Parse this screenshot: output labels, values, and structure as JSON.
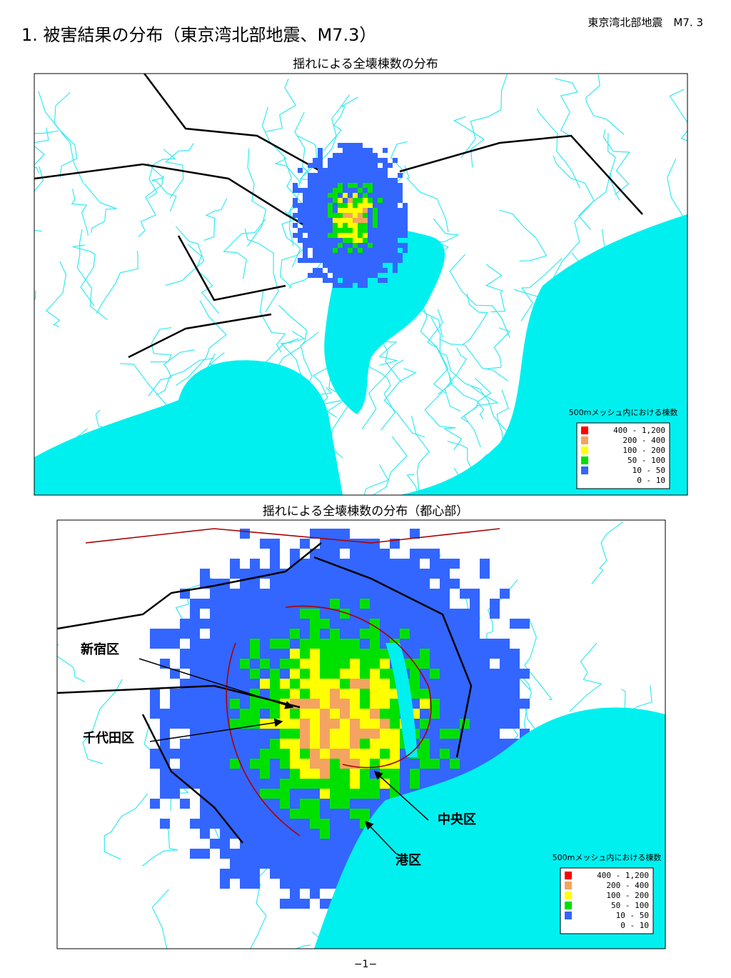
{
  "header": {
    "title": "1. 被害結果の分布（東京湾北部地震、M7.3）",
    "tag": "東京湾北部地震　M7. 3"
  },
  "maps": [
    {
      "title": "揺れによる全壊棟数の分布"
    },
    {
      "title": "揺れによる全壊棟数の分布（都心部）",
      "labels": [
        "新宿区",
        "千代田区",
        "中央区",
        "港区"
      ]
    }
  ],
  "legend": {
    "title": "500mメッシュ内における棟数",
    "items": [
      {
        "label": "400 - 1,200",
        "color": "#ff0000"
      },
      {
        "label": "200 - 400",
        "color": "#f4a460"
      },
      {
        "label": "100 - 200",
        "color": "#ffff00"
      },
      {
        "label": "50 - 100",
        "color": "#00e000"
      },
      {
        "label": "10 - 50",
        "color": "#3366ff"
      },
      {
        "label": "0 - 10",
        "color": "#ffffff"
      }
    ]
  },
  "footer": {
    "page": "−1−"
  }
}
